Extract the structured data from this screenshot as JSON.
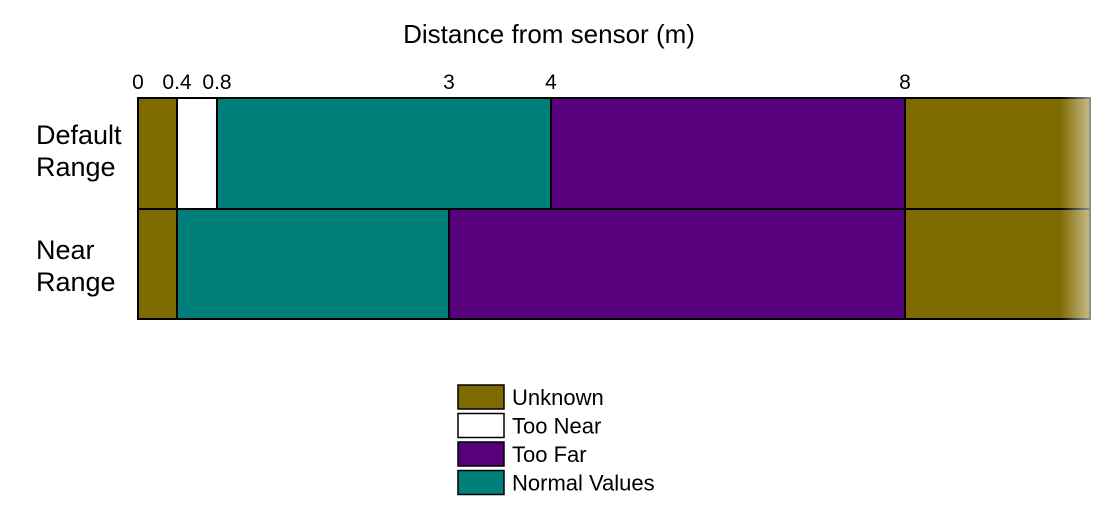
{
  "chart_data": {
    "type": "bar",
    "orientation": "horizontal-stacked",
    "title": "Distance from sensor (m)",
    "xlabel": "Distance from sensor (m)",
    "ylabel": "",
    "xlim": [
      0,
      9.5
    ],
    "x_ticks": [
      {
        "value": 0,
        "label": "0"
      },
      {
        "value": 0.4,
        "label": "0.4"
      },
      {
        "value": 0.8,
        "label": "0.8"
      },
      {
        "value": 3,
        "label": "3"
      },
      {
        "value": 4,
        "label": "4"
      },
      {
        "value": 8,
        "label": "8"
      }
    ],
    "rows": [
      {
        "label_lines": [
          "Default",
          "Range"
        ],
        "segments": [
          {
            "category": "Unknown",
            "start": 0,
            "end": 0.4
          },
          {
            "category": "Too Near",
            "start": 0.4,
            "end": 0.8
          },
          {
            "category": "Normal Values",
            "start": 0.8,
            "end": 4
          },
          {
            "category": "Too Far",
            "start": 4,
            "end": 8
          },
          {
            "category": "Unknown",
            "start": 8,
            "end": 9.5
          }
        ]
      },
      {
        "label_lines": [
          "Near",
          "Range"
        ],
        "segments": [
          {
            "category": "Unknown",
            "start": 0,
            "end": 0.4
          },
          {
            "category": "Normal Values",
            "start": 0.4,
            "end": 3
          },
          {
            "category": "Too Far",
            "start": 3,
            "end": 8
          },
          {
            "category": "Unknown",
            "start": 8,
            "end": 9.5
          }
        ]
      }
    ],
    "legend": {
      "position": "bottom-center",
      "entries": [
        {
          "name": "Unknown",
          "color": "#7f6a00"
        },
        {
          "name": "Too Near",
          "color": "#ffffff"
        },
        {
          "name": "Too Far",
          "color": "#56007c"
        },
        {
          "name": "Normal Values",
          "color": "#00807a"
        }
      ]
    },
    "grid": false,
    "right_edge": "fades out"
  }
}
